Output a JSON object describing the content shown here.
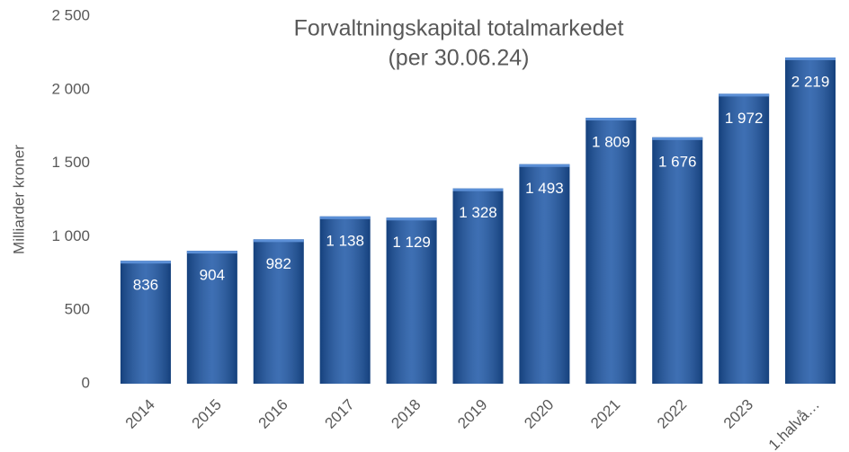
{
  "chart_data": {
    "type": "bar",
    "title": "Forvaltningskapital totalmarkedet",
    "subtitle": "(per 30.06.24)",
    "y_label": "Milliarder kroner",
    "categories": [
      "2014",
      "2015",
      "2016",
      "2017",
      "2018",
      "2019",
      "2020",
      "2021",
      "2022",
      "2023",
      "1.halvå…"
    ],
    "values": [
      836,
      904,
      982,
      1138,
      1129,
      1328,
      1493,
      1809,
      1676,
      1972,
      2219
    ],
    "value_labels": [
      "836",
      "904",
      "982",
      "1 138",
      "1 129",
      "1 328",
      "1 493",
      "1 809",
      "1 676",
      "1 972",
      "2 219"
    ],
    "color": "#1c56a6",
    "ylim": [
      0,
      2500
    ],
    "yticks": [
      0,
      500,
      {
        "value": 1000,
        "label": "1 000"
      },
      {
        "value": 1500,
        "label": "1 500"
      },
      {
        "value": 2000,
        "label": "2 000"
      },
      {
        "value": 2500,
        "label": "2 500"
      }
    ],
    "grid": false
  }
}
